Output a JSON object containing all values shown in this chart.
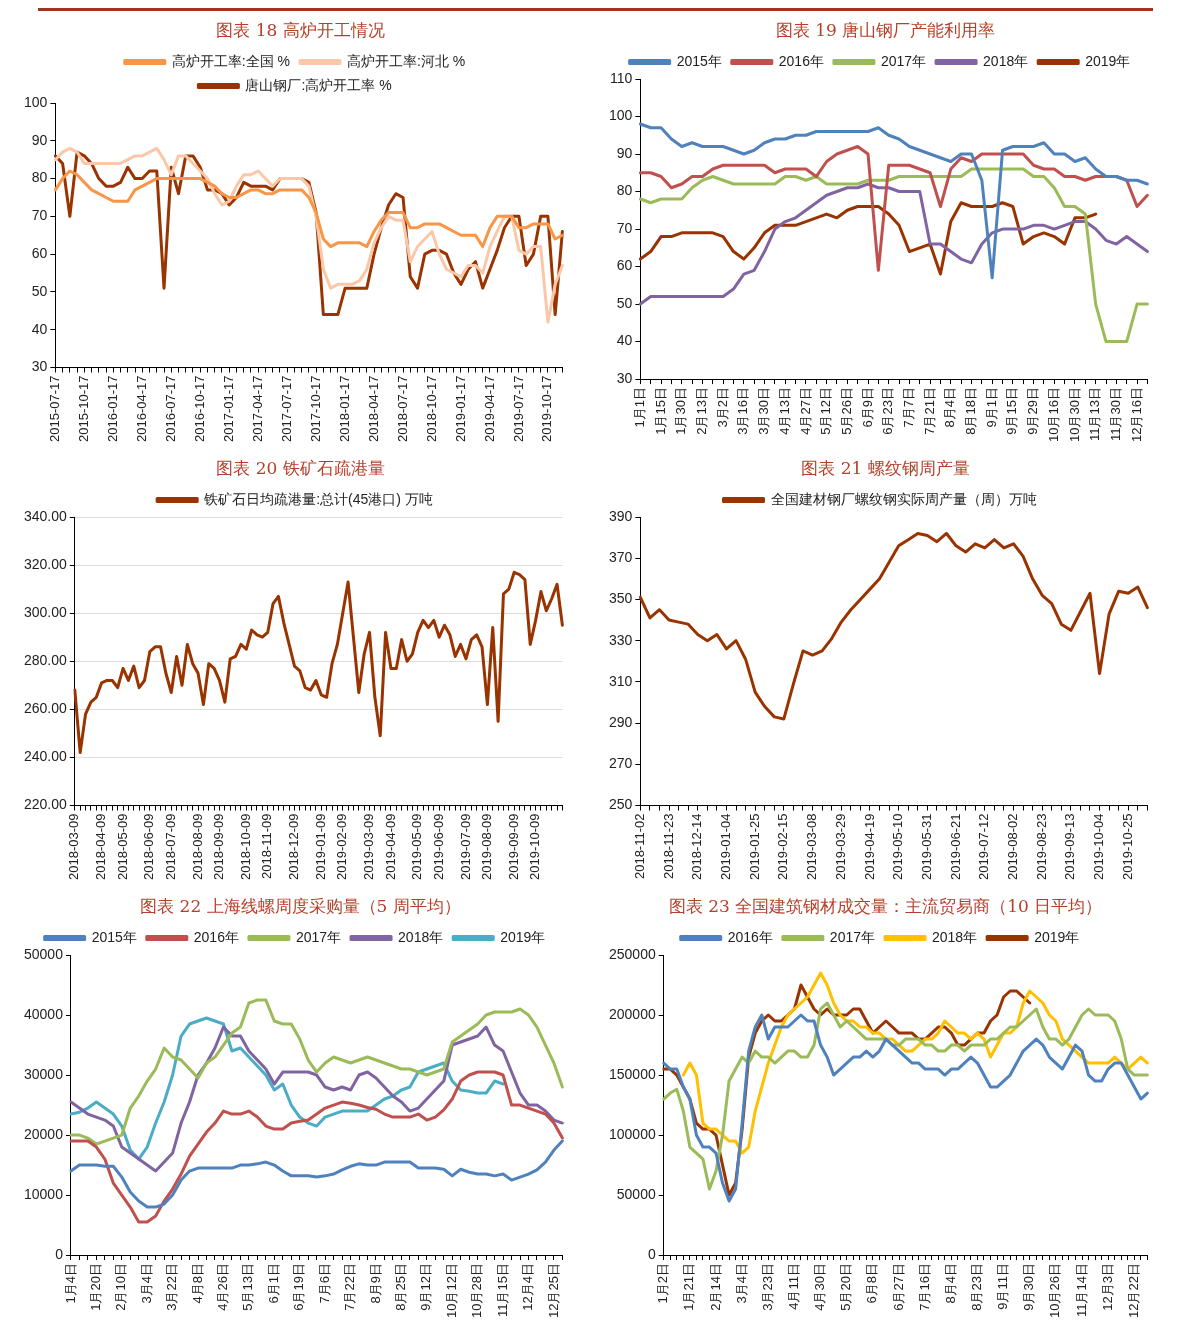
{
  "chart_data": [
    {
      "type": "line",
      "title": "图表 18  高炉开工情况",
      "legend": "top",
      "grid": false,
      "categories": [
        "2015-07-17",
        null,
        null,
        null,
        "2015-10-17",
        null,
        null,
        null,
        "2016-01-17",
        null,
        null,
        null,
        "2016-04-17",
        null,
        null,
        null,
        "2016-07-17",
        null,
        null,
        null,
        "2016-10-17",
        null,
        null,
        null,
        "2017-01-17",
        null,
        null,
        null,
        "2017-04-17",
        null,
        null,
        null,
        "2017-07-17",
        null,
        null,
        null,
        "2017-10-17",
        null,
        null,
        null,
        "2018-01-17",
        null,
        null,
        null,
        "2018-04-17",
        null,
        null,
        null,
        "2018-07-17",
        null,
        null,
        null,
        "2018-10-17",
        null,
        null,
        null,
        "2019-01-17",
        null,
        null,
        null,
        "2019-04-17",
        null,
        null,
        null,
        "2019-07-17",
        null,
        null,
        null,
        "2019-10-17",
        null,
        null
      ],
      "ylim": [
        30,
        100
      ],
      "yticks": [
        30,
        40,
        50,
        60,
        70,
        80,
        90,
        100
      ],
      "series": [
        {
          "name": "高炉开工率:全国 %",
          "color": "#f79646",
          "values": [
            77,
            80,
            82,
            81,
            79,
            77,
            76,
            75,
            74,
            74,
            74,
            77,
            78,
            79,
            80,
            80,
            80,
            80,
            80,
            80,
            80,
            79,
            78,
            76,
            75,
            75,
            76,
            77,
            77,
            76,
            76,
            77,
            77,
            77,
            77,
            75,
            71,
            64,
            62,
            63,
            63,
            63,
            63,
            62,
            66,
            69,
            71,
            71,
            71,
            67,
            67,
            68,
            68,
            68,
            67,
            66,
            65,
            65,
            65,
            62,
            67,
            70,
            70,
            70,
            67,
            67,
            68,
            68,
            68,
            64,
            65
          ]
        },
        {
          "name": "高炉开工率:河北 %",
          "color": "#fac8a8",
          "values": [
            85,
            87,
            88,
            87,
            84,
            84,
            84,
            84,
            84,
            84,
            85,
            86,
            86,
            87,
            88,
            85,
            81,
            86,
            86,
            84,
            82,
            80,
            76,
            73,
            74,
            78,
            81,
            81,
            82,
            80,
            78,
            80,
            80,
            80,
            80,
            78,
            70,
            56,
            51,
            52,
            52,
            52,
            53,
            56,
            63,
            67,
            70,
            69,
            69,
            58,
            62,
            64,
            66,
            60,
            56,
            55,
            54,
            57,
            57,
            55,
            62,
            66,
            70,
            70,
            61,
            60,
            62,
            62,
            42,
            52,
            57
          ]
        },
        {
          "name": "唐山钢厂:高炉开工率 %",
          "color": "#993300",
          "values": [
            86,
            84,
            70,
            87,
            86,
            84,
            80,
            78,
            78,
            79,
            83,
            80,
            80,
            82,
            82,
            51,
            83,
            76,
            86,
            86,
            83,
            77,
            77,
            76,
            73,
            75,
            79,
            78,
            78,
            78,
            77,
            80,
            80,
            80,
            80,
            79,
            71,
            44,
            44,
            44,
            51,
            51,
            51,
            51,
            60,
            67,
            73,
            76,
            75,
            54,
            51,
            60,
            61,
            61,
            60,
            55,
            52,
            56,
            58,
            51,
            56,
            61,
            67,
            70,
            70,
            57,
            60,
            70,
            70,
            44,
            66
          ]
        }
      ]
    },
    {
      "type": "line",
      "title": "图表 19  唐山钢厂产能利用率",
      "legend": "top",
      "grid": false,
      "categories": [
        "1月1日",
        null,
        "1月15日",
        null,
        "1月30日",
        null,
        "2月13日",
        null,
        "3月2日",
        null,
        "3月16日",
        null,
        "3月30日",
        null,
        "4月13日",
        null,
        "4月27日",
        null,
        "5月12日",
        null,
        "5月26日",
        null,
        "6月9日",
        null,
        "6月23日",
        null,
        "7月7日",
        null,
        "7月21日",
        null,
        "8月4日",
        null,
        "8月18日",
        null,
        "9月1日",
        null,
        "9月15日",
        null,
        "9月29日",
        null,
        "10月16日",
        null,
        "10月30日",
        null,
        "11月13日",
        null,
        "11月30日",
        null,
        "12月16日",
        null
      ],
      "ylim": [
        30,
        110
      ],
      "yticks": [
        30,
        40,
        50,
        60,
        70,
        80,
        90,
        100,
        110
      ],
      "series": [
        {
          "name": "2015年",
          "color": "#4f81bd",
          "values": [
            98,
            97,
            97,
            94,
            92,
            93,
            92,
            92,
            92,
            91,
            90,
            91,
            93,
            94,
            94,
            95,
            95,
            96,
            96,
            96,
            96,
            96,
            96,
            97,
            95,
            94,
            92,
            91,
            90,
            89,
            88,
            90,
            90,
            83,
            57,
            91,
            92,
            92,
            92,
            93,
            90,
            90,
            88,
            89,
            86,
            84,
            84,
            83,
            83,
            82
          ]
        },
        {
          "name": "2016年",
          "color": "#c0504d",
          "values": [
            85,
            85,
            84,
            81,
            82,
            84,
            84,
            86,
            87,
            87,
            87,
            87,
            87,
            85,
            86,
            86,
            86,
            84,
            88,
            90,
            91,
            92,
            90,
            59,
            87,
            87,
            87,
            86,
            85,
            76,
            86,
            89,
            88,
            90,
            90,
            90,
            90,
            90,
            87,
            86,
            86,
            84,
            84,
            83,
            84,
            84,
            84,
            83,
            76,
            79
          ]
        },
        {
          "name": "2017年",
          "color": "#9bbb59",
          "values": [
            78,
            77,
            78,
            78,
            78,
            81,
            83,
            84,
            83,
            82,
            82,
            82,
            82,
            82,
            84,
            84,
            83,
            84,
            82,
            82,
            82,
            82,
            83,
            83,
            83,
            84,
            84,
            84,
            84,
            84,
            84,
            84,
            86,
            86,
            86,
            86,
            86,
            86,
            84,
            84,
            81,
            76,
            76,
            74,
            50,
            40,
            40,
            40,
            50,
            50
          ]
        },
        {
          "name": "2018年",
          "color": "#8064a2",
          "values": [
            50,
            52,
            52,
            52,
            52,
            52,
            52,
            52,
            52,
            54,
            58,
            59,
            64,
            70,
            72,
            73,
            75,
            77,
            79,
            80,
            81,
            81,
            82,
            81,
            81,
            80,
            80,
            80,
            66,
            66,
            64,
            62,
            61,
            66,
            69,
            70,
            70,
            70,
            71,
            71,
            70,
            71,
            72,
            72,
            70,
            67,
            66,
            68,
            66,
            64
          ]
        },
        {
          "name": "2019年",
          "color": "#993300",
          "values": [
            62,
            64,
            68,
            68,
            69,
            69,
            69,
            69,
            68,
            64,
            62,
            65,
            69,
            71,
            71,
            71,
            72,
            73,
            74,
            73,
            75,
            76,
            76,
            76,
            74,
            71,
            64,
            65,
            66,
            58,
            72,
            77,
            76,
            76,
            76,
            77,
            76,
            66,
            68,
            69,
            68,
            66,
            73,
            73,
            74,
            null,
            null,
            null,
            null,
            null
          ]
        }
      ]
    },
    {
      "type": "line",
      "title": "图表 20  铁矿石疏港量",
      "legend": "top",
      "grid": "y",
      "categories": [
        "2018-03-09",
        null,
        null,
        null,
        null,
        "2018-04-09",
        null,
        null,
        null,
        "2018-05-09",
        null,
        null,
        null,
        null,
        "2018-06-09",
        null,
        null,
        null,
        "2018-07-09",
        null,
        null,
        null,
        null,
        "2018-08-09",
        null,
        null,
        null,
        "2018-09-09",
        null,
        null,
        null,
        null,
        "2018-10-09",
        null,
        null,
        null,
        "2018-11-09",
        null,
        null,
        null,
        null,
        "2018-12-09",
        null,
        null,
        null,
        null,
        "2019-01-09",
        null,
        null,
        null,
        "2019-02-09",
        null,
        null,
        null,
        null,
        "2019-03-09",
        null,
        null,
        null,
        "2019-04-09",
        null,
        null,
        null,
        null,
        "2019-05-09",
        null,
        null,
        null,
        "2019-06-09",
        null,
        null,
        null,
        null,
        "2019-07-09",
        null,
        null,
        null,
        "2019-08-09",
        null,
        null,
        null,
        null,
        "2019-09-09",
        null,
        null,
        null,
        "2019-10-09",
        null,
        null,
        null,
        null,
        null
      ],
      "ylim": [
        220,
        340
      ],
      "yticks": [
        {
          "value": 220,
          "label": "220.00"
        },
        {
          "value": 240,
          "label": "240.00"
        },
        {
          "value": 260,
          "label": "260.00"
        },
        {
          "value": 280,
          "label": "280.00"
        },
        {
          "value": 300,
          "label": "300.00"
        },
        {
          "value": 320,
          "label": "320.00"
        },
        {
          "value": 340,
          "label": "340.00"
        }
      ],
      "series": [
        {
          "name": "铁矿石日均疏港量:总计(45港口) 万吨",
          "color": "#993300",
          "values": [
            268,
            242,
            258,
            263,
            265,
            271,
            272,
            272,
            269,
            277,
            272,
            278,
            269,
            272,
            284,
            286,
            286,
            275,
            267,
            282,
            270,
            287,
            279,
            275,
            262,
            279,
            277,
            272,
            263,
            281,
            282,
            287,
            285,
            293,
            291,
            290,
            292,
            304,
            307,
            296,
            287,
            278,
            276,
            269,
            268,
            272,
            266,
            265,
            279,
            287,
            300,
            313,
            290,
            267,
            283,
            292,
            265,
            249,
            292,
            277,
            277,
            289,
            280,
            283,
            292,
            297,
            294,
            297,
            290,
            295,
            291,
            282,
            287,
            281,
            289,
            291,
            286,
            262,
            294,
            255,
            308,
            310,
            317,
            316,
            314,
            287,
            297,
            309,
            301,
            306,
            312,
            295
          ]
        }
      ]
    },
    {
      "type": "line",
      "title": "图表 21  螺纹钢周产量",
      "legend": "top",
      "grid": false,
      "categories": [
        "2018-11-02",
        null,
        null,
        "2018-11-23",
        null,
        null,
        "2018-12-14",
        null,
        null,
        "2019-01-04",
        null,
        null,
        "2019-01-25",
        null,
        null,
        "2019-02-15",
        null,
        null,
        "2019-03-08",
        null,
        null,
        "2019-03-29",
        null,
        null,
        "2019-04-19",
        null,
        null,
        "2019-05-10",
        null,
        null,
        "2019-05-31",
        null,
        null,
        "2019-06-21",
        null,
        null,
        "2019-07-12",
        null,
        null,
        "2019-08-02",
        null,
        null,
        "2019-08-23",
        null,
        null,
        "2019-09-13",
        null,
        null,
        "2019-10-04",
        null,
        null,
        "2019-10-25",
        null,
        null
      ],
      "ylim": [
        250,
        390
      ],
      "yticks": [
        250,
        270,
        290,
        310,
        330,
        350,
        370,
        390
      ],
      "series": [
        {
          "name": "全国建材钢厂螺纹钢实际周产量（周）万吨",
          "color": "#993300",
          "values": [
            351,
            341,
            345,
            340,
            339,
            338,
            333,
            330,
            333,
            326,
            330,
            321,
            305,
            298,
            293,
            292,
            309,
            325,
            323,
            325,
            331,
            339,
            345,
            350,
            355,
            360,
            368,
            376,
            379,
            382,
            381,
            378,
            382,
            376,
            373,
            377,
            375,
            379,
            375,
            377,
            371,
            360,
            352,
            348,
            338,
            335,
            344,
            353,
            314,
            343,
            354,
            353,
            356,
            346
          ]
        }
      ]
    },
    {
      "type": "line",
      "title": "图表 22  上海线螺周度采购量（5 周平均）",
      "legend": "top",
      "grid": false,
      "categories": [
        "1月4日",
        null,
        null,
        "1月20日",
        null,
        null,
        "2月10日",
        null,
        null,
        "3月4日",
        null,
        null,
        "3月22日",
        null,
        null,
        "4月8日",
        null,
        null,
        "4月26日",
        null,
        null,
        "5月13日",
        null,
        null,
        "6月1日",
        null,
        null,
        "6月19日",
        null,
        null,
        "7月6日",
        null,
        null,
        "7月22日",
        null,
        null,
        "8月9日",
        null,
        null,
        "8月25日",
        null,
        null,
        "9月12日",
        null,
        null,
        "10月12日",
        null,
        null,
        "10月28日",
        null,
        null,
        "11月15日",
        null,
        null,
        "12月4日",
        null,
        null,
        "12月25日",
        null
      ],
      "ylim": [
        0,
        50000
      ],
      "yticks": [
        0,
        10000,
        20000,
        30000,
        40000,
        50000
      ],
      "series": [
        {
          "name": "2015年",
          "color": "#4f81bd",
          "values": [
            14000,
            15000,
            15000,
            15000,
            14800,
            14800,
            13000,
            10500,
            9000,
            8000,
            8000,
            8500,
            10000,
            12500,
            14000,
            14500,
            14500,
            14500,
            14500,
            14500,
            15000,
            15000,
            15200,
            15500,
            15000,
            14000,
            13200,
            13200,
            13200,
            13000,
            13200,
            13500,
            14200,
            14800,
            15200,
            15000,
            15000,
            15500,
            15500,
            15500,
            15500,
            14500,
            14500,
            14500,
            14300,
            13200,
            14300,
            13800,
            13500,
            13500,
            13200,
            13500,
            12500,
            13000,
            13500,
            14200,
            15500,
            17500,
            19000
          ]
        },
        {
          "name": "2016年",
          "color": "#c0504d",
          "values": [
            19000,
            19000,
            19000,
            18000,
            16000,
            12000,
            10000,
            8000,
            5500,
            5500,
            6500,
            9000,
            11000,
            13500,
            16500,
            18500,
            20500,
            22000,
            24000,
            23500,
            23500,
            24000,
            23000,
            21500,
            21000,
            21000,
            22000,
            22300,
            22500,
            23500,
            24500,
            25000,
            25500,
            25300,
            25000,
            24600,
            24300,
            23500,
            23000,
            23000,
            23000,
            23500,
            22500,
            23000,
            24200,
            26000,
            29000,
            30000,
            30500,
            30500,
            30500,
            30000,
            25000,
            25000,
            24500,
            24000,
            23500,
            22000,
            19500
          ]
        },
        {
          "name": "2017年",
          "color": "#9bbb59",
          "values": [
            20000,
            20000,
            19500,
            18500,
            19000,
            19500,
            20000,
            24500,
            26500,
            29000,
            31000,
            34500,
            33000,
            32500,
            31000,
            29500,
            32000,
            33000,
            35000,
            37000,
            38000,
            42000,
            42500,
            42500,
            39000,
            38500,
            38500,
            36000,
            32500,
            30500,
            32000,
            33000,
            32500,
            32000,
            32500,
            33000,
            32500,
            32000,
            31500,
            31000,
            31000,
            30500,
            30000,
            30500,
            31000,
            35500,
            36500,
            37500,
            38500,
            40000,
            40500,
            40500,
            40500,
            41000,
            40000,
            38000,
            35000,
            32000,
            28000
          ]
        },
        {
          "name": "2018年",
          "color": "#8064a2",
          "values": [
            25500,
            24500,
            23500,
            23000,
            22500,
            21500,
            18000,
            17000,
            16000,
            15000,
            14000,
            15500,
            17000,
            22000,
            25500,
            30000,
            32000,
            34500,
            38000,
            36500,
            36500,
            34000,
            32500,
            31000,
            28500,
            30500,
            30500,
            30500,
            30500,
            30000,
            28000,
            27500,
            28000,
            27500,
            30000,
            30500,
            29500,
            28000,
            26500,
            25500,
            24000,
            24500,
            26000,
            27500,
            29000,
            35000,
            35500,
            36000,
            36500,
            38000,
            35000,
            34000,
            30500,
            27000,
            25000,
            25000,
            24000,
            22500,
            22000
          ]
        },
        {
          "name": "2019年",
          "color": "#4bacc6",
          "values": [
            23500,
            23800,
            24500,
            25500,
            24500,
            23500,
            21500,
            17500,
            16000,
            18000,
            22000,
            25500,
            30000,
            36500,
            38500,
            39000,
            39500,
            39000,
            38500,
            34000,
            34500,
            33000,
            31500,
            30000,
            27500,
            28500,
            25000,
            23000,
            22000,
            21500,
            23000,
            23500,
            24000,
            24000,
            24000,
            24000,
            25000,
            26000,
            26500,
            27500,
            28000,
            30500,
            31000,
            31500,
            32000,
            29000,
            27500,
            27300,
            27000,
            27000,
            29000,
            28500,
            null,
            null,
            null,
            null,
            null,
            null,
            null
          ]
        }
      ]
    },
    {
      "type": "line",
      "title": "图表 23  全国建筑钢材成交量：主流贸易商（10 日平均）",
      "legend": "top",
      "grid": false,
      "categories": [
        "1月2日",
        null,
        null,
        null,
        "1月21日",
        null,
        null,
        null,
        "2月14日",
        null,
        null,
        null,
        "3月4日",
        null,
        null,
        null,
        "3月23日",
        null,
        null,
        null,
        "4月11日",
        null,
        null,
        null,
        "4月30日",
        null,
        null,
        null,
        "5月20日",
        null,
        null,
        null,
        "6月8日",
        null,
        null,
        null,
        "6月27日",
        null,
        null,
        null,
        "7月16日",
        null,
        null,
        null,
        "8月4日",
        null,
        null,
        null,
        "8月23日",
        null,
        null,
        null,
        "9月11日",
        null,
        null,
        null,
        "9月30日",
        null,
        null,
        null,
        "10月26日",
        null,
        null,
        null,
        "11月14日",
        null,
        null,
        null,
        "12月3日",
        null,
        null,
        null,
        "12月22日",
        null,
        null
      ],
      "ylim": [
        0,
        250000
      ],
      "yticks": [
        0,
        50000,
        100000,
        150000,
        200000,
        250000
      ],
      "series": [
        {
          "name": "2016年",
          "color": "#4f81bd",
          "values": [
            160000,
            155000,
            155000,
            140000,
            130000,
            100000,
            90000,
            90000,
            85000,
            60000,
            45000,
            55000,
            110000,
            170000,
            190000,
            200000,
            180000,
            190000,
            190000,
            190000,
            195000,
            200000,
            195000,
            195000,
            175000,
            165000,
            150000,
            155000,
            160000,
            165000,
            165000,
            170000,
            165000,
            170000,
            180000,
            175000,
            170000,
            165000,
            160000,
            160000,
            155000,
            155000,
            155000,
            150000,
            155000,
            155000,
            160000,
            165000,
            160000,
            150000,
            140000,
            140000,
            145000,
            150000,
            160000,
            170000,
            175000,
            180000,
            175000,
            165000,
            160000,
            155000,
            165000,
            175000,
            170000,
            150000,
            145000,
            145000,
            155000,
            160000,
            160000,
            150000,
            140000,
            130000,
            135000
          ]
        },
        {
          "name": "2017年",
          "color": "#9bbb59",
          "values": [
            130000,
            135000,
            138000,
            120000,
            90000,
            85000,
            80000,
            55000,
            70000,
            100000,
            145000,
            155000,
            165000,
            160000,
            170000,
            165000,
            165000,
            160000,
            165000,
            170000,
            170000,
            165000,
            165000,
            175000,
            205000,
            210000,
            200000,
            190000,
            195000,
            190000,
            185000,
            180000,
            180000,
            180000,
            180000,
            175000,
            175000,
            180000,
            180000,
            180000,
            175000,
            175000,
            170000,
            170000,
            175000,
            175000,
            170000,
            175000,
            175000,
            175000,
            180000,
            180000,
            185000,
            190000,
            190000,
            195000,
            200000,
            205000,
            190000,
            180000,
            180000,
            175000,
            180000,
            190000,
            200000,
            205000,
            200000,
            200000,
            200000,
            195000,
            180000,
            155000,
            150000,
            150000,
            150000
          ]
        },
        {
          "name": "2018年",
          "color": "#ffc000",
          "values": [
            null,
            null,
            null,
            150000,
            160000,
            150000,
            110000,
            105000,
            105000,
            100000,
            95000,
            95000,
            85000,
            90000,
            120000,
            140000,
            160000,
            175000,
            190000,
            200000,
            205000,
            210000,
            215000,
            225000,
            235000,
            225000,
            210000,
            200000,
            195000,
            195000,
            190000,
            190000,
            185000,
            185000,
            180000,
            180000,
            175000,
            170000,
            170000,
            175000,
            180000,
            180000,
            185000,
            195000,
            190000,
            185000,
            185000,
            180000,
            185000,
            180000,
            165000,
            175000,
            185000,
            185000,
            190000,
            210000,
            220000,
            215000,
            210000,
            200000,
            195000,
            180000,
            175000,
            170000,
            165000,
            160000,
            160000,
            160000,
            160000,
            165000,
            160000,
            155000,
            160000,
            165000,
            160000
          ]
        },
        {
          "name": "2019年",
          "color": "#993300",
          "values": [
            155000,
            155000,
            150000,
            140000,
            130000,
            110000,
            105000,
            105000,
            100000,
            75000,
            50000,
            60000,
            105000,
            165000,
            185000,
            195000,
            200000,
            195000,
            195000,
            200000,
            205000,
            225000,
            215000,
            205000,
            200000,
            205000,
            200000,
            200000,
            200000,
            205000,
            205000,
            195000,
            185000,
            190000,
            195000,
            190000,
            185000,
            185000,
            185000,
            180000,
            180000,
            185000,
            190000,
            190000,
            185000,
            175000,
            175000,
            180000,
            185000,
            185000,
            195000,
            200000,
            215000,
            220000,
            220000,
            215000,
            210000,
            null,
            null,
            null,
            null,
            null,
            null,
            null,
            null,
            null,
            null,
            null,
            null,
            null,
            null,
            null,
            null,
            null,
            null
          ]
        }
      ]
    }
  ]
}
